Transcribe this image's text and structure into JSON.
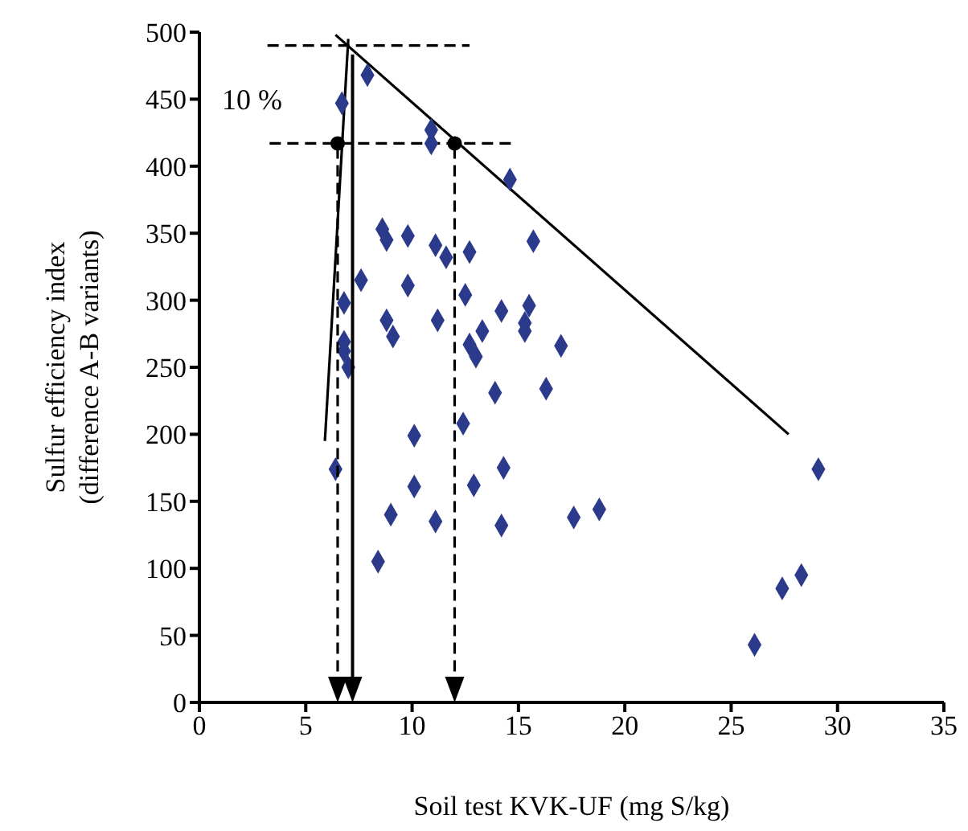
{
  "chart_data": {
    "type": "scatter",
    "xlabel": "Soil test KVK-UF (mg S/kg)",
    "ylabel": "Sulfur efficiency index\n(difference A-B variants)",
    "xlim": [
      0,
      35
    ],
    "xticks": [
      0,
      5,
      10,
      15,
      20,
      25,
      30,
      35
    ],
    "ylim": [
      0,
      500
    ],
    "yticks": [
      0,
      50,
      100,
      150,
      200,
      250,
      300,
      350,
      400,
      450,
      500
    ],
    "grid": false,
    "annotations": [
      "10 %"
    ],
    "ref_lines": [
      {
        "axis": "x",
        "value": 7.2,
        "line_style": "solid",
        "color": "#000000"
      },
      {
        "axis": "x",
        "value": 6.5,
        "line_style": "dashed",
        "color": "#000000"
      },
      {
        "axis": "x",
        "value": 12.0,
        "line_style": "dashed",
        "color": "#000000"
      }
    ],
    "series": [
      {
        "marker": "diamond",
        "color": "#2b3a8a",
        "x": [
          7.9,
          6.7,
          10.9,
          10.9,
          14.6,
          8.6,
          8.8,
          9.8,
          11.1,
          11.6,
          12.7,
          15.7,
          7.6,
          9.8,
          6.8,
          12.5,
          14.2,
          15.5,
          15.3,
          15.3,
          11.2,
          8.8,
          9.1,
          13.3,
          12.7,
          13.0,
          17.0,
          6.8,
          6.8,
          7.0,
          13.9,
          16.3,
          12.4,
          10.1,
          6.4,
          14.3,
          10.1,
          12.9,
          9.0,
          11.1,
          14.2,
          17.6,
          18.8,
          8.4,
          26.1,
          27.4,
          28.3,
          29.1
        ],
        "values": [
          468,
          447,
          427,
          417,
          390,
          353,
          345,
          348,
          341,
          332,
          336,
          344,
          315,
          311,
          298,
          304,
          292,
          296,
          283,
          277,
          285,
          285,
          273,
          277,
          267,
          258,
          266,
          269,
          262,
          250,
          231,
          234,
          208,
          199,
          174,
          175,
          161,
          162,
          140,
          135,
          132,
          138,
          144,
          105,
          43,
          85,
          95,
          174
        ]
      },
      {
        "type": "line",
        "marker": "none",
        "line_style": "solid",
        "color": "#000000",
        "x": [
          5.9,
          7.0
        ],
        "values": [
          195,
          495
        ]
      },
      {
        "type": "line",
        "marker": "none",
        "line_style": "solid",
        "color": "#000000",
        "x": [
          6.4,
          27.7
        ],
        "values": [
          498,
          200
        ]
      },
      {
        "type": "line",
        "marker": "none",
        "line_style": "dashed",
        "color": "#000000",
        "x": [
          3.2,
          12.7
        ],
        "values": [
          490,
          490
        ]
      },
      {
        "type": "line",
        "marker": "none",
        "line_style": "dashed",
        "color": "#000000",
        "x": [
          3.3,
          14.8
        ],
        "values": [
          417,
          417
        ]
      },
      {
        "type": "scatter",
        "marker": "circle",
        "color": "#000000",
        "x": [
          6.5,
          12.0
        ],
        "values": [
          417,
          417
        ]
      }
    ]
  }
}
